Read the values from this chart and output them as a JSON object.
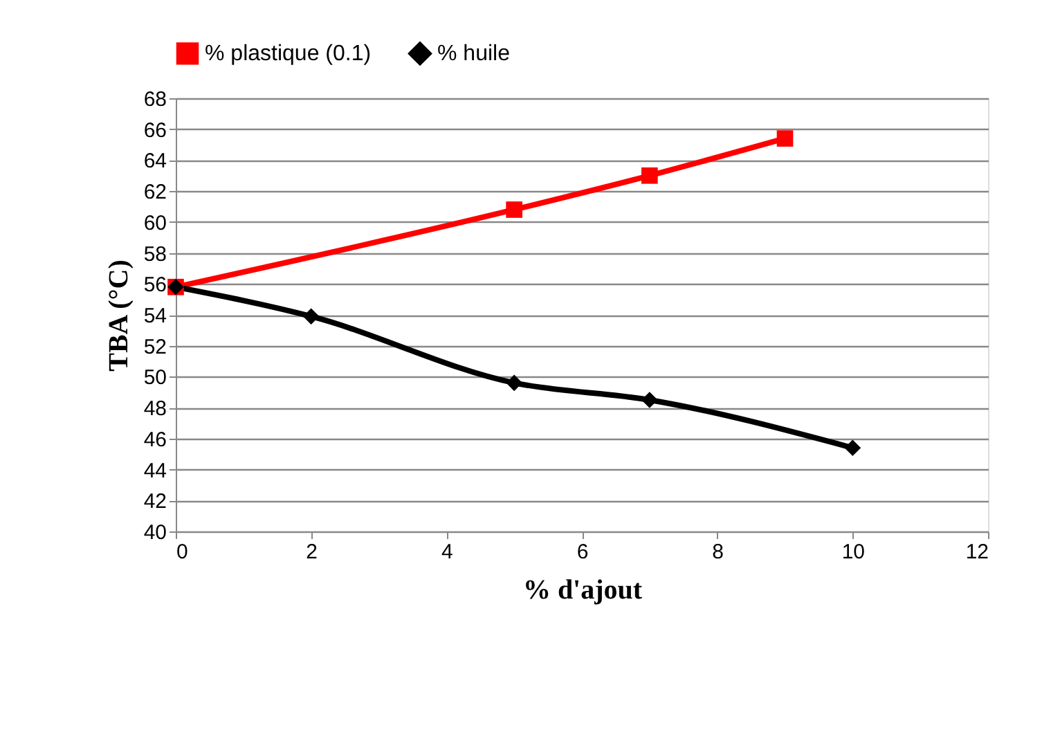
{
  "chart_data": {
    "type": "line",
    "xlabel": "% d'ajout",
    "ylabel": "TBA (°C)",
    "xlim": [
      0,
      12
    ],
    "xticks": [
      0,
      2,
      4,
      6,
      8,
      10,
      12
    ],
    "ylim": [
      40,
      68
    ],
    "yticks": [
      40,
      42,
      44,
      46,
      48,
      50,
      52,
      54,
      56,
      58,
      60,
      62,
      64,
      66,
      68
    ],
    "grid": "y",
    "legend": "top",
    "line_style": "solid",
    "series": [
      {
        "name": "% plastique (0.1)",
        "color": "#ff0000",
        "marker": "square",
        "x": [
          0,
          5,
          7,
          9
        ],
        "values": [
          55.8,
          60.8,
          63.0,
          65.4
        ]
      },
      {
        "name": "% huile",
        "color": "#000000",
        "marker": "diamond",
        "x": [
          0,
          2,
          5,
          7,
          10
        ],
        "values": [
          55.8,
          53.9,
          49.6,
          48.5,
          45.4
        ]
      }
    ]
  }
}
